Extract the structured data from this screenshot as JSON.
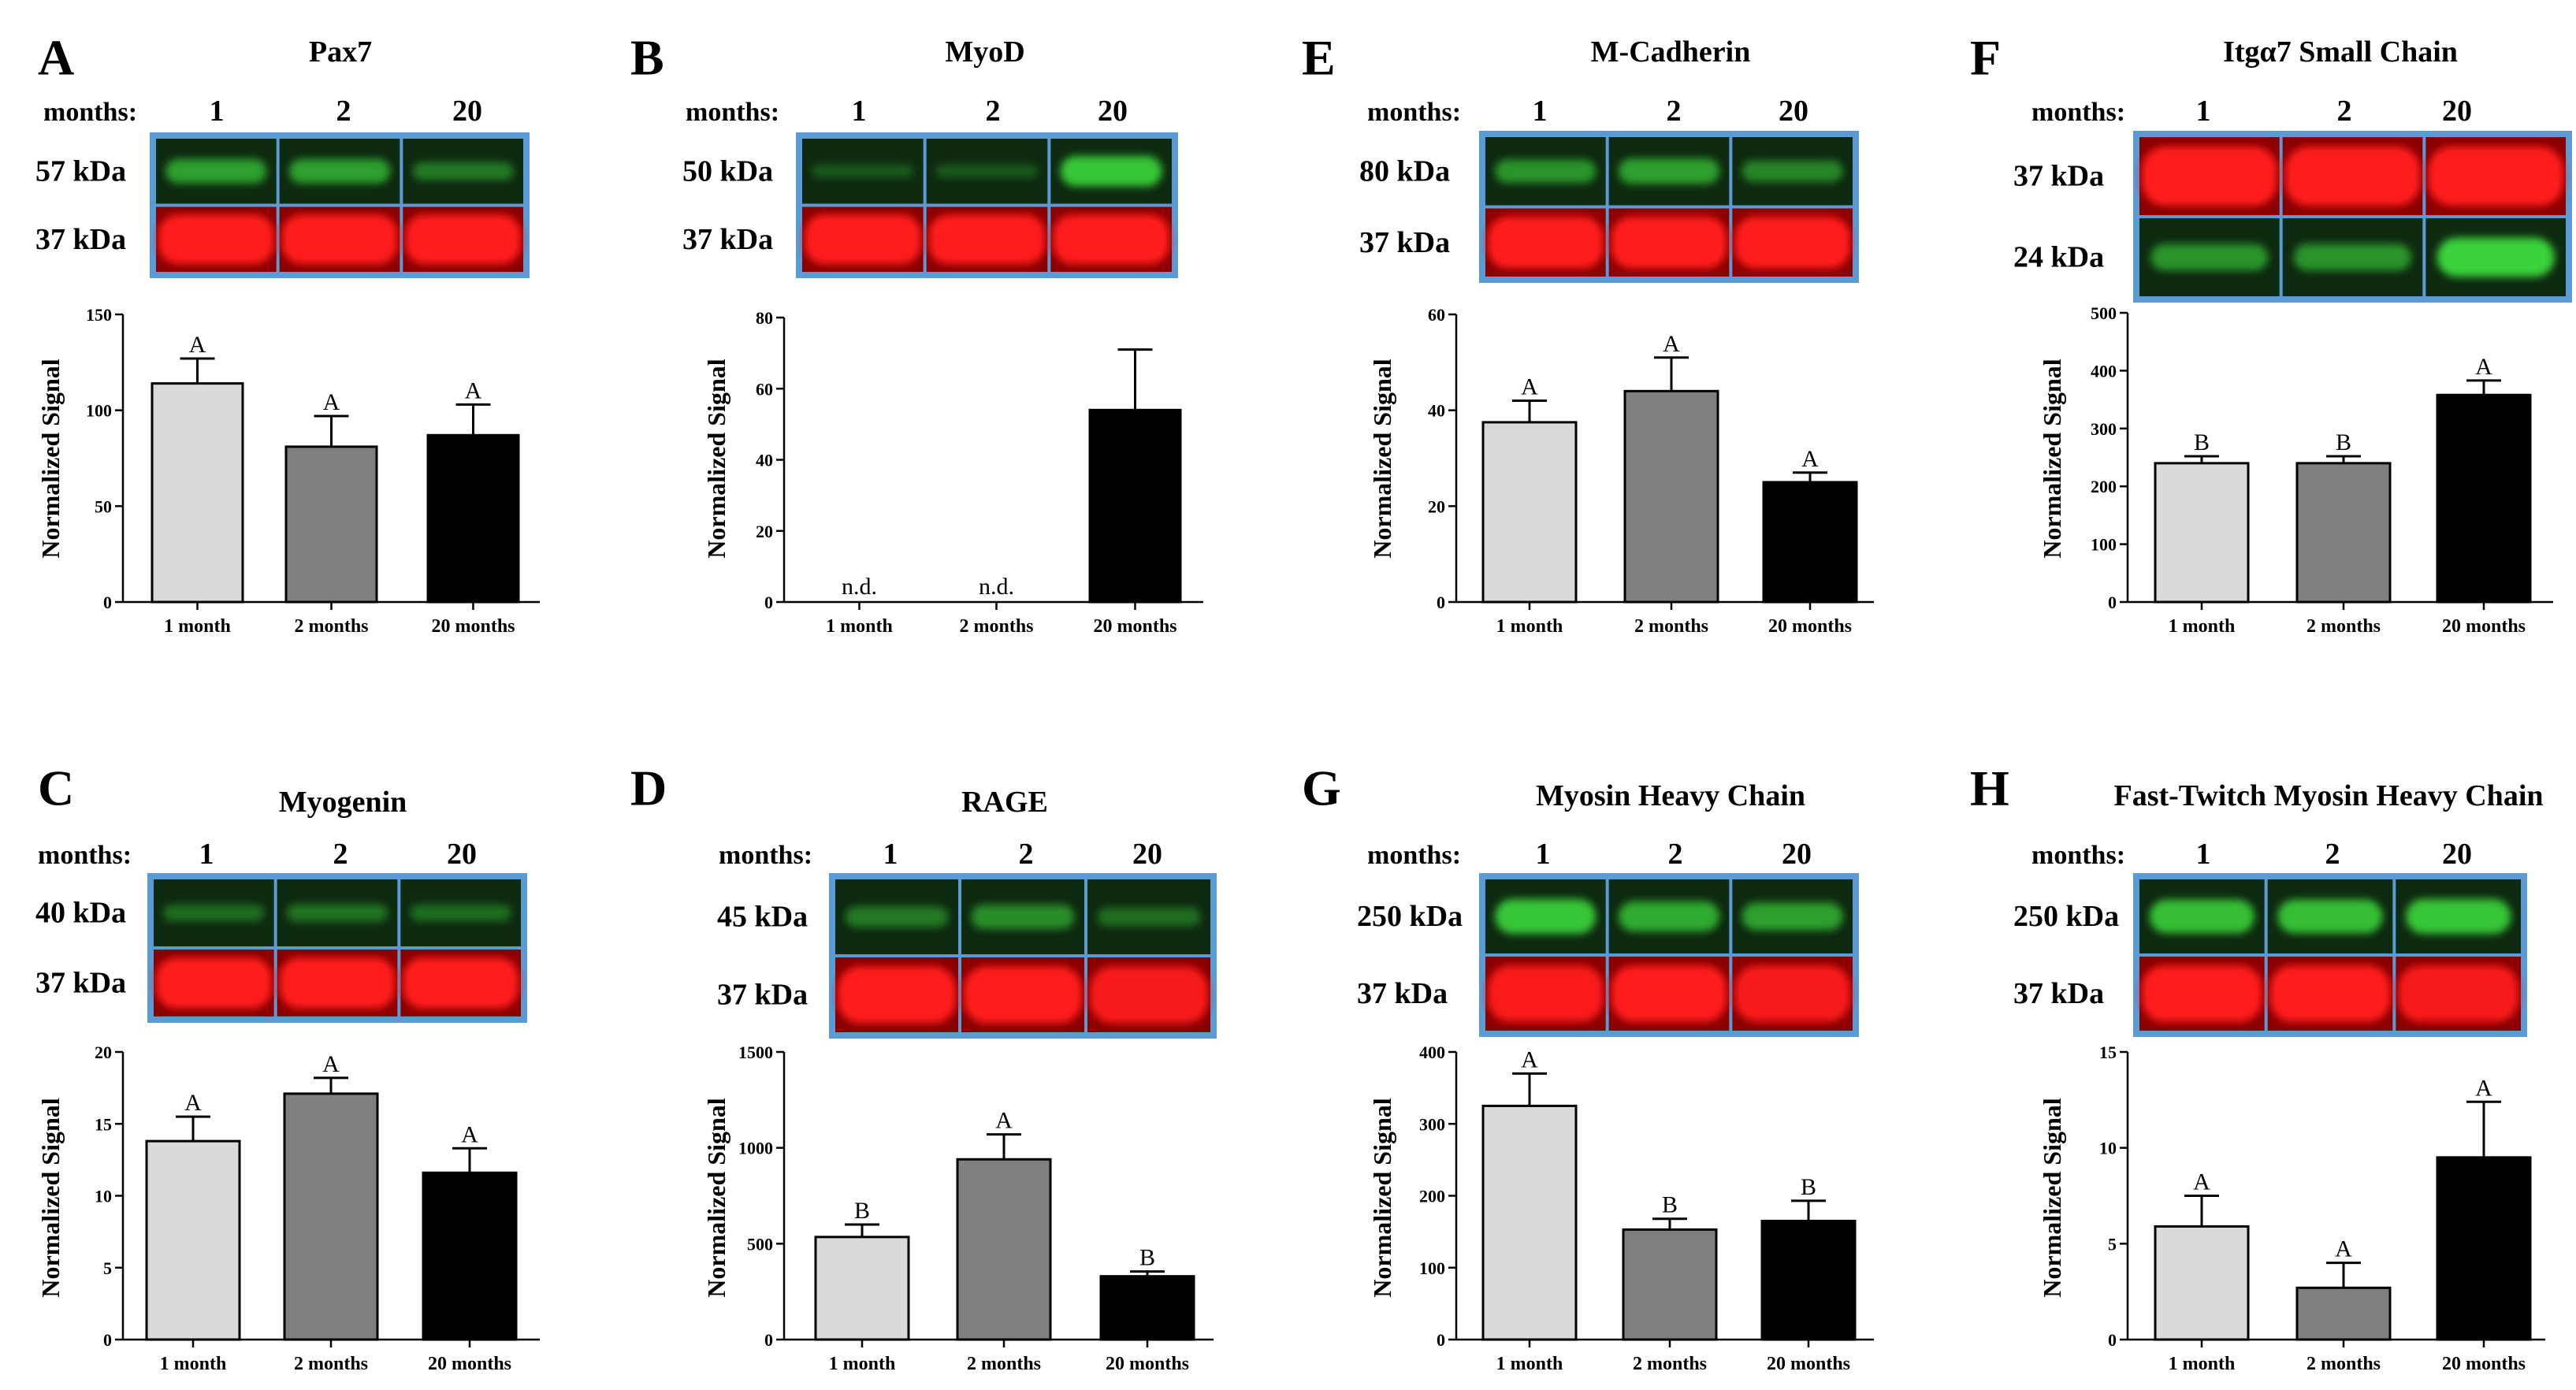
{
  "figure": {
    "months_label": "months:",
    "lane_labels": [
      "1",
      "2",
      "20"
    ],
    "ylabel": "Normalized Signal",
    "categories": [
      "1 month",
      "2 months",
      "20 months"
    ],
    "colors": {
      "bar_1": "#d9d9d9",
      "bar_2": "#7f7f7f",
      "bar_3": "#000000",
      "blot_frame": "#5b9bd5",
      "green_band": "#3ad23a",
      "red_band": "#ff1a1a"
    }
  },
  "chart_data": [
    {
      "panel": "A",
      "title": "Pax7",
      "type": "bar",
      "blot": [
        {
          "kda": "57 kDa",
          "color": "green",
          "intensity": [
            0.6,
            0.6,
            0.3
          ]
        },
        {
          "kda": "37 kDa",
          "color": "red",
          "intensity": [
            1,
            1,
            1
          ]
        }
      ],
      "values": [
        114,
        81,
        87
      ],
      "errors": [
        13,
        16,
        16
      ],
      "letters": [
        "A",
        "A",
        "A"
      ],
      "ylim": [
        0,
        150
      ],
      "ticks": [
        0,
        50,
        100,
        150
      ]
    },
    {
      "panel": "B",
      "title": "MyoD",
      "type": "bar",
      "blot": [
        {
          "kda": "50 kDa",
          "color": "green",
          "intensity": [
            0.05,
            0.05,
            0.9
          ]
        },
        {
          "kda": "37 kDa",
          "color": "red",
          "intensity": [
            1,
            1,
            1
          ]
        }
      ],
      "values": [
        0,
        0,
        54
      ],
      "errors": [
        0,
        0,
        17
      ],
      "letters": [
        "n.d.",
        "n.d.",
        ""
      ],
      "ylim": [
        0,
        80
      ],
      "ticks": [
        0,
        20,
        40,
        60,
        80
      ]
    },
    {
      "panel": "E",
      "title": "M-Cadherin",
      "type": "bar",
      "blot": [
        {
          "kda": "80 kDa",
          "color": "green",
          "intensity": [
            0.5,
            0.6,
            0.4
          ]
        },
        {
          "kda": "37 kDa",
          "color": "red",
          "intensity": [
            1,
            1,
            1
          ]
        }
      ],
      "values": [
        37.5,
        44,
        25
      ],
      "errors": [
        4.5,
        7,
        2
      ],
      "letters": [
        "A",
        "A",
        "A"
      ],
      "ylim": [
        0,
        60
      ],
      "ticks": [
        0,
        20,
        40,
        60
      ]
    },
    {
      "panel": "F",
      "title": "Itgα7 Small Chain",
      "type": "bar",
      "blot": [
        {
          "kda": "37 kDa",
          "color": "red",
          "intensity": [
            1,
            1,
            1
          ]
        },
        {
          "kda": "24 kDa",
          "color": "green",
          "intensity": [
            0.5,
            0.5,
            1
          ]
        }
      ],
      "values": [
        240,
        240,
        358
      ],
      "errors": [
        12,
        12,
        25
      ],
      "letters": [
        "B",
        "B",
        "A"
      ],
      "ylim": [
        0,
        500
      ],
      "ticks": [
        0,
        100,
        200,
        300,
        400,
        500
      ]
    },
    {
      "panel": "C",
      "title": "Myogenin",
      "type": "bar",
      "blot": [
        {
          "kda": "40 kDa",
          "color": "green",
          "intensity": [
            0.2,
            0.25,
            0.2
          ]
        },
        {
          "kda": "37 kDa",
          "color": "red",
          "intensity": [
            1,
            1,
            1
          ]
        }
      ],
      "values": [
        13.8,
        17.1,
        11.6
      ],
      "errors": [
        1.7,
        1.1,
        1.7
      ],
      "letters": [
        "A",
        "A",
        "A"
      ],
      "ylim": [
        0,
        20
      ],
      "ticks": [
        0,
        5,
        10,
        15,
        20
      ]
    },
    {
      "panel": "D",
      "title": "RAGE",
      "type": "bar",
      "blot": [
        {
          "kda": "45 kDa",
          "color": "green",
          "intensity": [
            0.3,
            0.45,
            0.2
          ]
        },
        {
          "kda": "37 kDa",
          "color": "red",
          "intensity": [
            1,
            1,
            0.85
          ]
        }
      ],
      "values": [
        535,
        940,
        330
      ],
      "errors": [
        65,
        130,
        25
      ],
      "letters": [
        "B",
        "A",
        "B"
      ],
      "ylim": [
        0,
        1500
      ],
      "ticks": [
        0,
        500,
        1000,
        1500
      ]
    },
    {
      "panel": "G",
      "title": "Myosin Heavy Chain",
      "type": "bar",
      "blot": [
        {
          "kda": "250 kDa",
          "color": "green",
          "intensity": [
            0.9,
            0.7,
            0.6
          ]
        },
        {
          "kda": "37 kDa",
          "color": "red",
          "intensity": [
            0.9,
            1,
            0.85
          ]
        }
      ],
      "values": [
        325,
        153,
        165
      ],
      "errors": [
        45,
        15,
        28
      ],
      "letters": [
        "A",
        "B",
        "B"
      ],
      "ylim": [
        0,
        400
      ],
      "ticks": [
        0,
        100,
        200,
        300,
        400
      ]
    },
    {
      "panel": "H",
      "title": "Fast-Twitch Myosin Heavy Chain",
      "type": "bar",
      "blot": [
        {
          "kda": "250 kDa",
          "color": "green",
          "intensity": [
            0.85,
            0.85,
            0.9
          ]
        },
        {
          "kda": "37 kDa",
          "color": "red",
          "intensity": [
            1,
            1,
            0.85
          ]
        }
      ],
      "values": [
        5.9,
        2.7,
        9.5
      ],
      "errors": [
        1.6,
        1.3,
        2.9
      ],
      "letters": [
        "A",
        "A",
        "A"
      ],
      "ylim": [
        0,
        15
      ],
      "ticks": [
        0,
        5,
        10,
        15
      ]
    }
  ]
}
